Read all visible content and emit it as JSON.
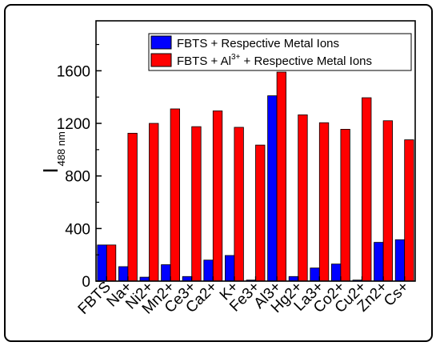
{
  "chart_data": {
    "type": "bar",
    "title": "",
    "xlabel": "",
    "ylabel": "I",
    "ylabel_subscript": "488 nm",
    "ylim": [
      0,
      1980
    ],
    "yticks": [
      0,
      400,
      800,
      1200,
      1600
    ],
    "categories": [
      "FBTS",
      "Na+",
      "Ni2+",
      "Mn2+",
      "Ce3+",
      "Ca2+",
      "K+",
      "Fe3+",
      "Al3+",
      "Hg2+",
      "La3+",
      "Co2+",
      "Cu2+",
      "Zn2+",
      "Cs+"
    ],
    "series": [
      {
        "name": "FBTS + Respective Metal Ions",
        "color": "#0000FF",
        "values": [
          275,
          110,
          30,
          125,
          35,
          160,
          195,
          8,
          1410,
          35,
          100,
          130,
          8,
          295,
          315
        ]
      },
      {
        "name_parts": [
          "FBTS + Al",
          "3+",
          " + Respective Metal Ions"
        ],
        "color": "#FF0000",
        "values": [
          275,
          1125,
          1200,
          1310,
          1175,
          1295,
          1170,
          1035,
          1590,
          1265,
          1205,
          1155,
          1395,
          1220,
          1075
        ]
      }
    ],
    "legend_position": "top-right",
    "grid": false
  }
}
